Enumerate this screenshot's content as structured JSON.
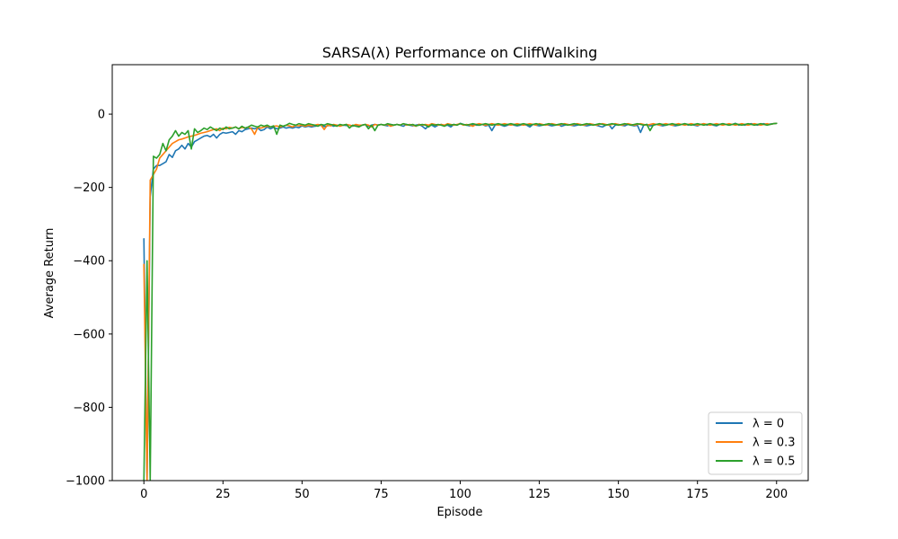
{
  "chart_data": {
    "type": "line",
    "title": "SARSA(λ) Performance on CliffWalking",
    "xlabel": "Episode",
    "ylabel": "Average Return",
    "xlim": [
      -10,
      210
    ],
    "ylim": [
      -1000,
      135
    ],
    "xticks": [
      0,
      25,
      50,
      75,
      100,
      125,
      150,
      175,
      200
    ],
    "yticks": [
      0,
      -200,
      -400,
      -600,
      -800,
      -1000
    ],
    "xtick_labels": [
      "0",
      "25",
      "50",
      "75",
      "100",
      "125",
      "150",
      "175",
      "200"
    ],
    "ytick_labels": [
      "0",
      "−200",
      "−400",
      "−600",
      "−800",
      "−1000"
    ],
    "grid": false,
    "legend_position": "lower-right",
    "series": [
      {
        "name": "λ = 0",
        "color": "#1f77b4",
        "x": [
          0,
          1,
          2,
          3,
          4,
          5,
          6,
          7,
          8,
          9,
          10,
          11,
          12,
          13,
          14,
          15,
          16,
          17,
          18,
          19,
          20,
          21,
          22,
          23,
          24,
          25,
          26,
          27,
          28,
          29,
          30,
          31,
          32,
          33,
          34,
          35,
          36,
          37,
          38,
          39,
          40,
          41,
          42,
          43,
          44,
          45,
          46,
          47,
          48,
          49,
          50,
          51,
          52,
          53,
          54,
          55,
          56,
          57,
          58,
          59,
          60,
          61,
          62,
          63,
          64,
          65,
          66,
          67,
          68,
          69,
          70,
          71,
          72,
          73,
          74,
          75,
          76,
          77,
          78,
          79,
          80,
          81,
          82,
          83,
          84,
          85,
          86,
          87,
          88,
          89,
          90,
          91,
          92,
          93,
          94,
          95,
          96,
          97,
          98,
          99,
          100,
          101,
          102,
          103,
          104,
          105,
          106,
          107,
          108,
          109,
          110,
          111,
          112,
          113,
          114,
          115,
          116,
          117,
          118,
          119,
          120,
          121,
          122,
          123,
          124,
          125,
          126,
          127,
          128,
          129,
          130,
          131,
          132,
          133,
          134,
          135,
          136,
          137,
          138,
          139,
          140,
          141,
          142,
          143,
          144,
          145,
          146,
          147,
          148,
          149,
          150,
          151,
          152,
          153,
          154,
          155,
          156,
          157,
          158,
          159,
          160,
          161,
          162,
          163,
          164,
          165,
          166,
          167,
          168,
          169,
          170,
          171,
          172,
          173,
          174,
          175,
          176,
          177,
          178,
          179,
          180,
          181,
          182,
          183,
          184,
          185,
          186,
          187,
          188,
          189,
          190,
          191,
          192,
          193,
          194,
          195,
          196,
          197,
          198,
          199,
          200
        ],
        "values": [
          -340,
          -1000,
          -225,
          -150,
          -140,
          -140,
          -135,
          -130,
          -110,
          -118,
          -100,
          -95,
          -85,
          -95,
          -80,
          -90,
          -75,
          -70,
          -65,
          -60,
          -58,
          -62,
          -55,
          -65,
          -55,
          -50,
          -52,
          -50,
          -48,
          -55,
          -45,
          -48,
          -42,
          -40,
          -38,
          -40,
          -38,
          -45,
          -42,
          -35,
          -40,
          -36,
          -40,
          -38,
          -35,
          -38,
          -36,
          -38,
          -35,
          -37,
          -32,
          -35,
          -33,
          -35,
          -33,
          -32,
          -30,
          -34,
          -32,
          -30,
          -33,
          -30,
          -32,
          -30,
          -31,
          -30,
          -33,
          -30,
          -32,
          -30,
          -28,
          -33,
          -30,
          -28,
          -30,
          -28,
          -30,
          -32,
          -28,
          -30,
          -28,
          -30,
          -33,
          -28,
          -30,
          -32,
          -30,
          -28,
          -33,
          -40,
          -32,
          -30,
          -35,
          -30,
          -28,
          -32,
          -30,
          -35,
          -28,
          -30,
          -25,
          -28,
          -30,
          -32,
          -28,
          -30,
          -30,
          -28,
          -32,
          -30,
          -45,
          -30,
          -28,
          -30,
          -33,
          -30,
          -28,
          -30,
          -32,
          -30,
          -28,
          -30,
          -35,
          -28,
          -30,
          -32,
          -30,
          -28,
          -30,
          -32,
          -30,
          -28,
          -33,
          -30,
          -28,
          -30,
          -32,
          -30,
          -28,
          -30,
          -32,
          -30,
          -28,
          -30,
          -33,
          -35,
          -30,
          -28,
          -40,
          -30,
          -28,
          -30,
          -32,
          -28,
          -30,
          -32,
          -30,
          -50,
          -30,
          -28,
          -32,
          -30,
          -28,
          -30,
          -32,
          -30,
          -28,
          -30,
          -32,
          -30,
          -28,
          -26,
          -30,
          -28,
          -30,
          -32,
          -28,
          -26,
          -30,
          -28,
          -30,
          -32,
          -28,
          -26,
          -28,
          -30,
          -28,
          -25,
          -30,
          -28,
          -30,
          -28,
          -26,
          -28,
          -30,
          -28,
          -26,
          -28,
          -27,
          -26,
          -25
        ]
      },
      {
        "name": "λ = 0.3",
        "color": "#ff7f0e",
        "x": [
          0,
          1,
          2,
          3,
          4,
          5,
          6,
          7,
          8,
          9,
          10,
          11,
          12,
          13,
          14,
          15,
          16,
          17,
          18,
          19,
          20,
          21,
          22,
          23,
          24,
          25,
          26,
          27,
          28,
          29,
          30,
          31,
          32,
          33,
          34,
          35,
          36,
          37,
          38,
          39,
          40,
          41,
          42,
          43,
          44,
          45,
          46,
          47,
          48,
          49,
          50,
          51,
          52,
          53,
          54,
          55,
          56,
          57,
          58,
          59,
          60,
          61,
          62,
          63,
          64,
          65,
          66,
          67,
          68,
          69,
          70,
          71,
          72,
          73,
          74,
          75,
          76,
          77,
          78,
          79,
          80,
          81,
          82,
          83,
          84,
          85,
          86,
          87,
          88,
          89,
          90,
          91,
          92,
          93,
          94,
          95,
          96,
          97,
          98,
          99,
          100,
          101,
          102,
          103,
          104,
          105,
          106,
          107,
          108,
          109,
          110,
          111,
          112,
          113,
          114,
          115,
          116,
          117,
          118,
          119,
          120,
          121,
          122,
          123,
          124,
          125,
          126,
          127,
          128,
          129,
          130,
          131,
          132,
          133,
          134,
          135,
          136,
          137,
          138,
          139,
          140,
          141,
          142,
          143,
          144,
          145,
          146,
          147,
          148,
          149,
          150,
          151,
          152,
          153,
          154,
          155,
          156,
          157,
          158,
          159,
          160,
          161,
          162,
          163,
          164,
          165,
          166,
          167,
          168,
          169,
          170,
          171,
          172,
          173,
          174,
          175,
          176,
          177,
          178,
          179,
          180,
          181,
          182,
          183,
          184,
          185,
          186,
          187,
          188,
          189,
          190,
          191,
          192,
          193,
          194,
          195,
          196,
          197,
          198,
          199,
          200
        ],
        "values": [
          -410,
          -1000,
          -180,
          -165,
          -150,
          -120,
          -110,
          -100,
          -90,
          -80,
          -75,
          -70,
          -68,
          -65,
          -62,
          -60,
          -58,
          -55,
          -52,
          -50,
          -48,
          -45,
          -42,
          -40,
          -45,
          -38,
          -40,
          -36,
          -38,
          -35,
          -40,
          -36,
          -38,
          -35,
          -40,
          -55,
          -36,
          -38,
          -35,
          -33,
          -35,
          -33,
          -32,
          -35,
          -33,
          -30,
          -32,
          -35,
          -30,
          -32,
          -30,
          -33,
          -30,
          -32,
          -30,
          -28,
          -30,
          -42,
          -30,
          -32,
          -28,
          -30,
          -33,
          -30,
          -28,
          -30,
          -32,
          -28,
          -30,
          -30,
          -28,
          -30,
          -35,
          -28,
          -30,
          -28,
          -30,
          -28,
          -33,
          -30,
          -28,
          -30,
          -26,
          -30,
          -28,
          -30,
          -33,
          -28,
          -30,
          -28,
          -30,
          -26,
          -28,
          -30,
          -28,
          -30,
          -26,
          -28,
          -30,
          -28,
          -26,
          -30,
          -28,
          -30,
          -33,
          -28,
          -26,
          -28,
          -30,
          -28,
          -26,
          -28,
          -30,
          -28,
          -26,
          -28,
          -30,
          -28,
          -26,
          -28,
          -30,
          -28,
          -26,
          -28,
          -30,
          -26,
          -28,
          -30,
          -28,
          -26,
          -28,
          -30,
          -28,
          -26,
          -28,
          -30,
          -28,
          -26,
          -28,
          -30,
          -28,
          -26,
          -28,
          -30,
          -28,
          -26,
          -28,
          -30,
          -28,
          -26,
          -28,
          -30,
          -28,
          -26,
          -28,
          -30,
          -28,
          -26,
          -28,
          -30,
          -28,
          -26,
          -28,
          -30,
          -28,
          -26,
          -28,
          -30,
          -28,
          -26,
          -28,
          -30,
          -28,
          -26,
          -28,
          -30,
          -28,
          -26,
          -28,
          -30,
          -28,
          -26,
          -28,
          -30,
          -28,
          -26,
          -28,
          -30,
          -28,
          -26,
          -28,
          -30,
          -28,
          -26,
          -28,
          -30,
          -28,
          -26,
          -28,
          -26,
          -25
        ]
      },
      {
        "name": "λ = 0.5",
        "color": "#2ca02c",
        "x": [
          0,
          1,
          2,
          3,
          4,
          5,
          6,
          7,
          8,
          9,
          10,
          11,
          12,
          13,
          14,
          15,
          16,
          17,
          18,
          19,
          20,
          21,
          22,
          23,
          24,
          25,
          26,
          27,
          28,
          29,
          30,
          31,
          32,
          33,
          34,
          35,
          36,
          37,
          38,
          39,
          40,
          41,
          42,
          43,
          44,
          45,
          46,
          47,
          48,
          49,
          50,
          51,
          52,
          53,
          54,
          55,
          56,
          57,
          58,
          59,
          60,
          61,
          62,
          63,
          64,
          65,
          66,
          67,
          68,
          69,
          70,
          71,
          72,
          73,
          74,
          75,
          76,
          77,
          78,
          79,
          80,
          81,
          82,
          83,
          84,
          85,
          86,
          87,
          88,
          89,
          90,
          91,
          92,
          93,
          94,
          95,
          96,
          97,
          98,
          99,
          100,
          101,
          102,
          103,
          104,
          105,
          106,
          107,
          108,
          109,
          110,
          111,
          112,
          113,
          114,
          115,
          116,
          117,
          118,
          119,
          120,
          121,
          122,
          123,
          124,
          125,
          126,
          127,
          128,
          129,
          130,
          131,
          132,
          133,
          134,
          135,
          136,
          137,
          138,
          139,
          140,
          141,
          142,
          143,
          144,
          145,
          146,
          147,
          148,
          149,
          150,
          151,
          152,
          153,
          154,
          155,
          156,
          157,
          158,
          159,
          160,
          161,
          162,
          163,
          164,
          165,
          166,
          167,
          168,
          169,
          170,
          171,
          172,
          173,
          174,
          175,
          176,
          177,
          178,
          179,
          180,
          181,
          182,
          183,
          184,
          185,
          186,
          187,
          188,
          189,
          190,
          191,
          192,
          193,
          194,
          195,
          196,
          197,
          198,
          199,
          200
        ],
        "values": [
          -1000,
          -400,
          -1000,
          -115,
          -120,
          -110,
          -80,
          -100,
          -70,
          -60,
          -45,
          -60,
          -50,
          -55,
          -45,
          -95,
          -40,
          -50,
          -45,
          -38,
          -42,
          -35,
          -40,
          -45,
          -38,
          -42,
          -35,
          -40,
          -38,
          -35,
          -40,
          -33,
          -38,
          -35,
          -30,
          -33,
          -35,
          -30,
          -33,
          -30,
          -35,
          -32,
          -55,
          -30,
          -33,
          -30,
          -25,
          -28,
          -30,
          -26,
          -28,
          -30,
          -26,
          -28,
          -30,
          -33,
          -28,
          -30,
          -26,
          -28,
          -30,
          -33,
          -28,
          -30,
          -28,
          -38,
          -30,
          -33,
          -35,
          -30,
          -28,
          -40,
          -30,
          -45,
          -30,
          -28,
          -30,
          -26,
          -28,
          -30,
          -28,
          -30,
          -26,
          -28,
          -30,
          -28,
          -32,
          -30,
          -28,
          -30,
          -35,
          -28,
          -30,
          -28,
          -30,
          -33,
          -28,
          -30,
          -28,
          -30,
          -26,
          -28,
          -30,
          -28,
          -26,
          -28,
          -30,
          -28,
          -26,
          -28,
          -30,
          -28,
          -26,
          -28,
          -30,
          -28,
          -26,
          -28,
          -30,
          -28,
          -26,
          -28,
          -30,
          -28,
          -26,
          -28,
          -30,
          -28,
          -26,
          -28,
          -30,
          -28,
          -26,
          -28,
          -30,
          -28,
          -26,
          -28,
          -30,
          -28,
          -26,
          -28,
          -30,
          -28,
          -26,
          -28,
          -30,
          -28,
          -26,
          -28,
          -30,
          -28,
          -26,
          -28,
          -30,
          -28,
          -26,
          -28,
          -30,
          -28,
          -45,
          -30,
          -28,
          -26,
          -28,
          -30,
          -28,
          -26,
          -28,
          -30,
          -28,
          -26,
          -28,
          -30,
          -28,
          -26,
          -28,
          -30,
          -28,
          -26,
          -28,
          -30,
          -28,
          -26,
          -28,
          -30,
          -28,
          -26,
          -28,
          -30,
          -28,
          -26,
          -28,
          -30,
          -28,
          -26,
          -28,
          -30,
          -28,
          -26,
          -25
        ]
      }
    ]
  }
}
